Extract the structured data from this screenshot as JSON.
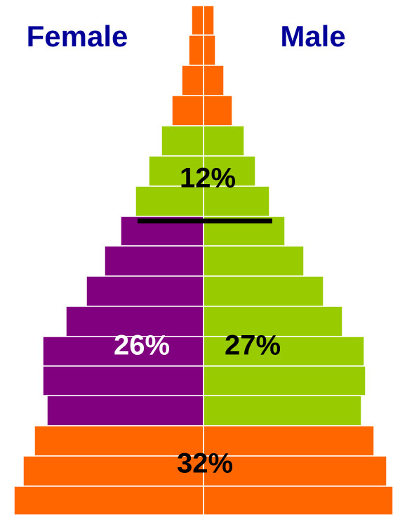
{
  "labels": {
    "female": "Female",
    "male": "Male"
  },
  "annotations": {
    "top": "12%",
    "middle_left": "26%",
    "middle_right": "27%",
    "bottom": "32%"
  }
}
